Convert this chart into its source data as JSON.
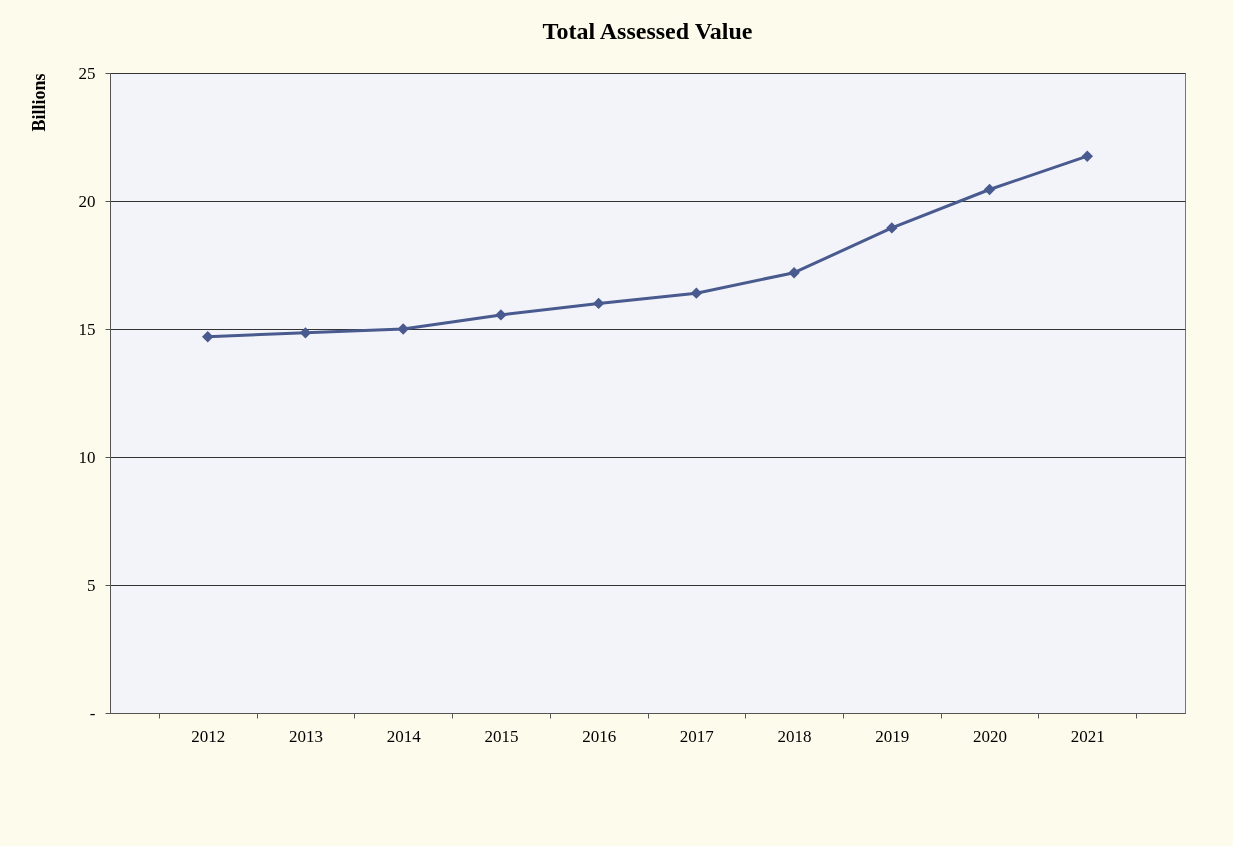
{
  "chart_data": {
    "type": "line",
    "title": "Total Assessed Value",
    "ylabel": "Billions",
    "categories": [
      "2012",
      "2013",
      "2014",
      "2015",
      "2016",
      "2017",
      "2018",
      "2019",
      "2020",
      "2021"
    ],
    "series": [
      {
        "color": "#485a8e",
        "values": [
          14.7,
          14.85,
          15.0,
          15.55,
          16.0,
          16.4,
          17.2,
          18.95,
          20.45,
          21.75
        ]
      }
    ],
    "ylim": [
      0,
      25
    ],
    "yticks": [
      {
        "value": 0,
        "label": "-"
      },
      5,
      10,
      15,
      20,
      25
    ],
    "grid": "y",
    "marker": "diamond",
    "legend": false
  }
}
